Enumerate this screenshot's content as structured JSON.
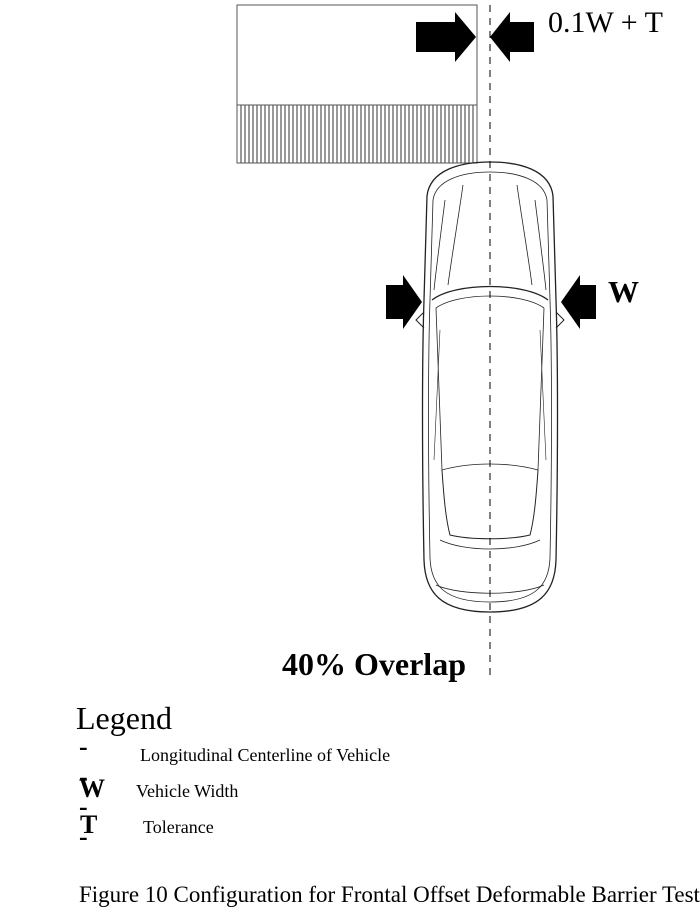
{
  "diagram": {
    "offset_label": "0.1W + T",
    "width_label": "W",
    "overlap_label": "40% Overlap"
  },
  "legend": {
    "title": "Legend",
    "items": [
      {
        "symbol": "----",
        "description": "Longitudinal Centerline of Vehicle"
      },
      {
        "symbol": "W",
        "description": "Vehicle Width"
      },
      {
        "symbol": "T",
        "description": "Tolerance"
      }
    ]
  },
  "caption": "Figure 10 Configuration for Frontal Offset Deformable Barrier Test"
}
